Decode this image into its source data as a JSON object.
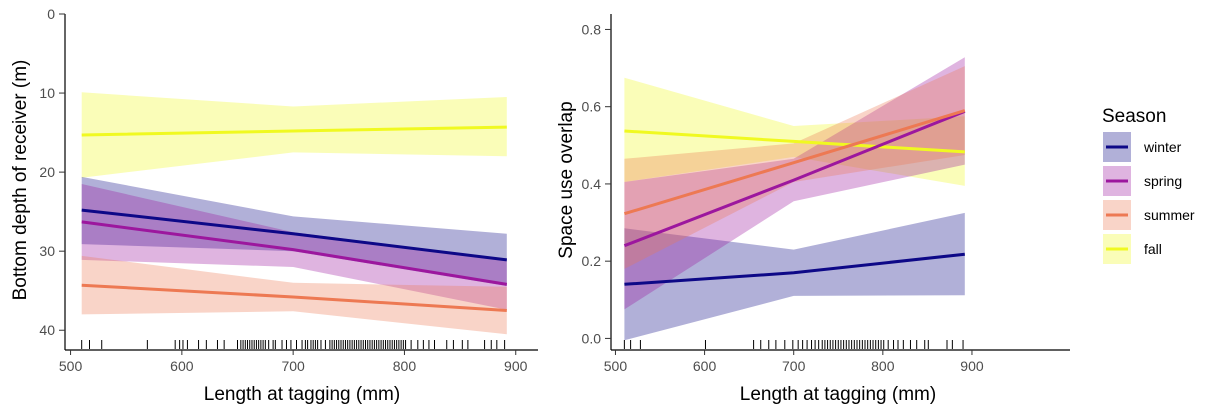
{
  "legend": {
    "title": "Season",
    "entries": [
      {
        "key": "winter",
        "label": "winter"
      },
      {
        "key": "spring",
        "label": "spring"
      },
      {
        "key": "summer",
        "label": "summer"
      },
      {
        "key": "fall",
        "label": "fall"
      }
    ]
  },
  "colors": {
    "winter": "#0d0887",
    "spring": "#9c179e",
    "summer": "#ed7953",
    "fall": "#f0f921"
  },
  "chart_data": [
    {
      "type": "line",
      "xlabel": "Length at tagging (mm)",
      "ylabel": "Bottom depth of receiver (m)",
      "xlim": [
        495,
        920
      ],
      "ylim": [
        0,
        42.5
      ],
      "y_reversed": true,
      "xticks": [
        500,
        600,
        700,
        800,
        900
      ],
      "yticks": [
        0,
        10,
        20,
        30,
        40
      ],
      "grid": false,
      "series": [
        {
          "name": "fall",
          "x": [
            510,
            700,
            892
          ],
          "y": [
            15.3,
            14.8,
            14.3
          ],
          "lower": [
            9.9,
            11.7,
            10.5
          ],
          "upper": [
            20.7,
            17.5,
            18.0
          ]
        },
        {
          "name": "winter",
          "x": [
            510,
            700,
            892
          ],
          "y": [
            24.8,
            27.8,
            31.1
          ],
          "lower": [
            20.6,
            25.6,
            27.8
          ],
          "upper": [
            29.1,
            30.0,
            34.4
          ]
        },
        {
          "name": "spring",
          "x": [
            510,
            700,
            892
          ],
          "y": [
            26.3,
            29.8,
            34.2
          ],
          "lower": [
            21.5,
            27.6,
            31.0
          ],
          "upper": [
            31.1,
            32.0,
            37.4
          ]
        },
        {
          "name": "summer",
          "x": [
            510,
            700,
            892
          ],
          "y": [
            34.3,
            35.8,
            37.5
          ],
          "lower": [
            30.6,
            34.0,
            34.5
          ],
          "upper": [
            38.0,
            37.6,
            40.5
          ]
        }
      ],
      "rug": [
        510,
        517,
        528,
        569,
        594,
        598,
        601,
        605,
        615,
        622,
        632,
        638,
        650,
        653,
        655,
        657,
        659,
        661,
        663,
        665,
        667,
        669,
        671,
        673,
        675,
        678,
        682,
        684,
        690,
        694,
        698,
        703,
        708,
        711,
        713,
        716,
        718,
        720,
        722,
        725,
        729,
        733,
        735,
        737,
        739,
        741,
        743,
        745,
        747,
        749,
        751,
        753,
        755,
        757,
        759,
        761,
        763,
        765,
        767,
        769,
        771,
        773,
        775,
        777,
        779,
        781,
        783,
        785,
        787,
        789,
        791,
        793,
        795,
        797,
        799,
        801,
        806,
        812,
        817,
        822,
        827,
        838,
        844,
        852,
        857,
        872,
        878,
        883,
        890
      ]
    },
    {
      "type": "line",
      "xlabel": "Length at tagging (mm)",
      "ylabel": "Space use overlap",
      "xlim": [
        495,
        1010
      ],
      "ylim": [
        -0.03,
        0.84
      ],
      "xticks": [
        500,
        600,
        700,
        800,
        900
      ],
      "yticks": [
        0.0,
        0.2,
        0.4,
        0.6,
        0.8
      ],
      "ytick_labels": [
        "0.0",
        "0.2",
        "0.4",
        "0.6",
        "0.8"
      ],
      "grid": false,
      "series": [
        {
          "name": "fall",
          "x": [
            510,
            700,
            892
          ],
          "y": [
            0.537,
            0.51,
            0.483
          ],
          "lower": [
            0.405,
            0.47,
            0.395
          ],
          "upper": [
            0.675,
            0.55,
            0.575
          ]
        },
        {
          "name": "winter",
          "x": [
            510,
            700,
            892
          ],
          "y": [
            0.14,
            0.17,
            0.218
          ],
          "lower": [
            -0.005,
            0.11,
            0.112
          ],
          "upper": [
            0.285,
            0.23,
            0.325
          ]
        },
        {
          "name": "spring",
          "x": [
            510,
            700,
            892
          ],
          "y": [
            0.24,
            0.41,
            0.588
          ],
          "lower": [
            0.075,
            0.355,
            0.45
          ],
          "upper": [
            0.405,
            0.465,
            0.728
          ]
        },
        {
          "name": "summer",
          "x": [
            510,
            700,
            892
          ],
          "y": [
            0.323,
            0.455,
            0.59
          ],
          "lower": [
            0.18,
            0.405,
            0.475
          ],
          "upper": [
            0.465,
            0.505,
            0.705
          ]
        }
      ],
      "rug": [
        510,
        517,
        528,
        601,
        655,
        663,
        672,
        680,
        690,
        699,
        705,
        710,
        715,
        720,
        724,
        728,
        732,
        735,
        738,
        741,
        744,
        747,
        750,
        753,
        756,
        759,
        762,
        765,
        768,
        771,
        774,
        777,
        780,
        783,
        786,
        789,
        792,
        795,
        798,
        801,
        806,
        812,
        817,
        823,
        831,
        838,
        847,
        851,
        872,
        878,
        890
      ]
    }
  ]
}
